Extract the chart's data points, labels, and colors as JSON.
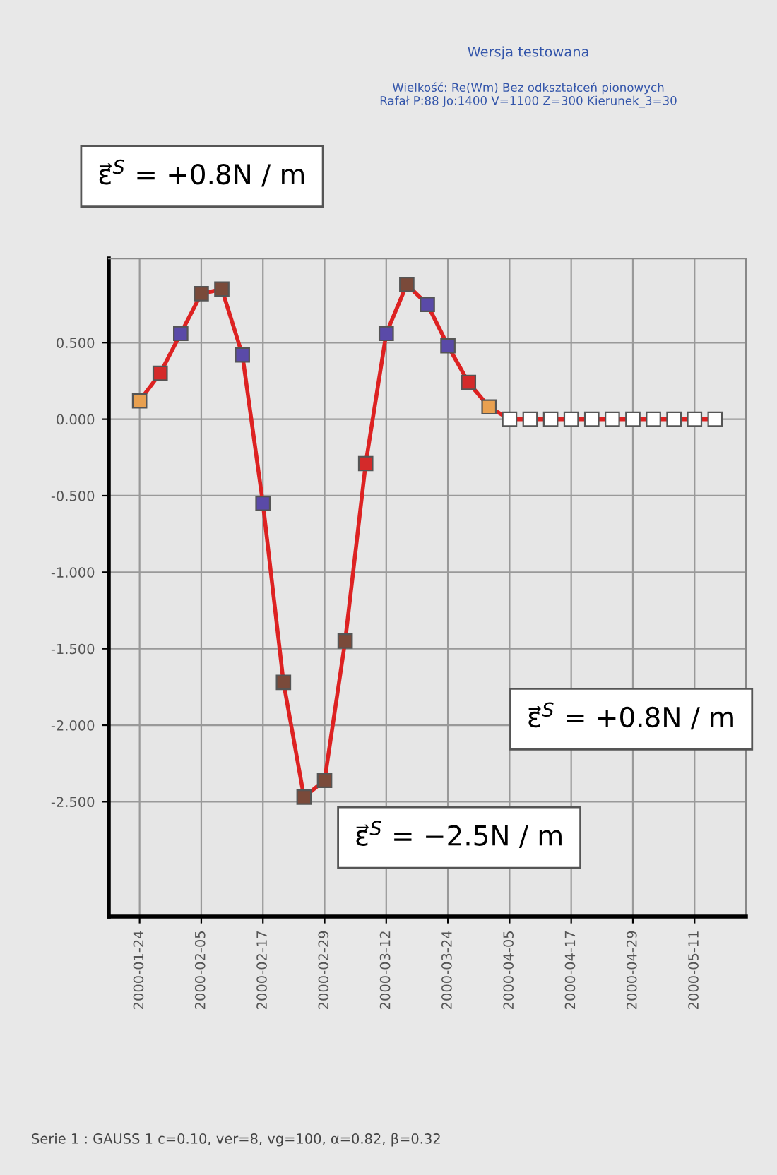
{
  "chart_data": {
    "type": "line",
    "title": "Wersja testowana",
    "subtitle": "Wielkość: Re(Wm) Bez odkształceń pionowych\nRafał P:88 Jo:1400 V=1100 Z=300 Kierunek_3=30",
    "x": [
      "2000-01-24",
      "2000-01-28",
      "2000-02-01",
      "2000-02-05",
      "2000-02-09",
      "2000-02-13",
      "2000-02-17",
      "2000-02-21",
      "2000-02-25",
      "2000-02-29",
      "2000-03-04",
      "2000-03-08",
      "2000-03-12",
      "2000-03-16",
      "2000-03-20",
      "2000-03-24",
      "2000-03-28",
      "2000-04-01",
      "2000-04-05",
      "2000-04-09",
      "2000-04-13",
      "2000-04-17",
      "2000-04-21",
      "2000-04-25",
      "2000-04-29",
      "2000-05-03",
      "2000-05-07",
      "2000-05-11",
      "2000-05-15"
    ],
    "series": [
      {
        "color": "#dd2222",
        "values": [
          0.12,
          0.3,
          0.56,
          0.82,
          0.85,
          0.42,
          -0.55,
          -1.72,
          -2.47,
          -2.36,
          -1.45,
          -0.29,
          0.56,
          0.88,
          0.75,
          0.48,
          0.24,
          0.08,
          0,
          0,
          0,
          0,
          0,
          0,
          0,
          0,
          0,
          0,
          0
        ]
      }
    ],
    "colors": [
      "#e8a050",
      "#d42a2a",
      "#5a4aa8",
      "#7a4a3a",
      "#7a4a3a",
      "#5a4aa8",
      "#5a4aa8",
      "#7a4a3a",
      "#7a4a3a",
      "#7a4a3a",
      "#7a4a3a",
      "#d42a2a",
      "#5a4aa8",
      "#7a4a3a",
      "#5a4aa8",
      "#5a4aa8",
      "#d42a2a",
      "#e8a050",
      "#ffffff",
      "#ffffff",
      "#ffffff",
      "#ffffff",
      "#ffffff",
      "#ffffff",
      "#ffffff",
      "#ffffff",
      "#ffffff",
      "#ffffff",
      "#ffffff"
    ],
    "marker": "square",
    "grid": true,
    "xlim": [
      "2000-01-18",
      "2000-05-21"
    ],
    "xticks": [
      {
        "value": "2000-01-24",
        "label": "2000-01-24"
      },
      {
        "value": "2000-02-05",
        "label": "2000-02-05"
      },
      {
        "value": "2000-02-17",
        "label": "2000-02-17"
      },
      {
        "value": "2000-02-29",
        "label": "2000-02-29"
      },
      {
        "value": "2000-03-12",
        "label": "2000-03-12"
      },
      {
        "value": "2000-03-24",
        "label": "2000-03-24"
      },
      {
        "value": "2000-04-05",
        "label": "2000-04-05"
      },
      {
        "value": "2000-04-17",
        "label": "2000-04-17"
      },
      {
        "value": "2000-04-29",
        "label": "2000-04-29"
      },
      {
        "value": "2000-05-11",
        "label": "2000-05-11"
      }
    ],
    "ylim": [
      -3.25,
      1.05
    ],
    "yticks": [
      {
        "value": 0.5,
        "label": "0.500"
      },
      {
        "value": 0,
        "label": "0.000"
      },
      {
        "value": -0.5,
        "label": "-0.500"
      },
      {
        "value": -1,
        "label": "-1.000"
      },
      {
        "value": -1.5,
        "label": "-1.500"
      },
      {
        "value": -2,
        "label": "-2.000"
      },
      {
        "value": -2.5,
        "label": "-2.500"
      }
    ],
    "annotations": [
      "ε⃗$^{S}$ = +0.8N / m",
      "ε⃗$^{S}$ = +0.8N / m",
      "ε⃗$^{S}$ = −2.5N / m",
      "Serie 1 : GAUSS 1 c=0.10, ver=8, vg=100, α=0.82, β=0.32"
    ]
  }
}
